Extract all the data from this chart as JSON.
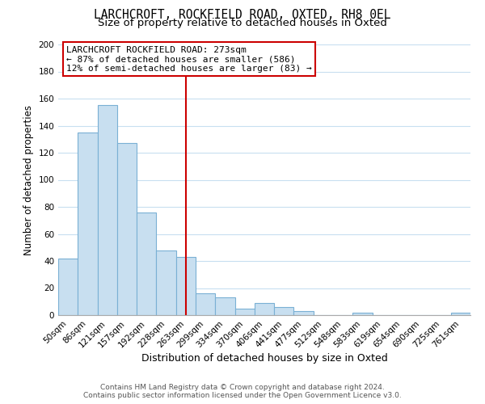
{
  "title": "LARCHCROFT, ROCKFIELD ROAD, OXTED, RH8 0EL",
  "subtitle": "Size of property relative to detached houses in Oxted",
  "xlabel": "Distribution of detached houses by size in Oxted",
  "ylabel": "Number of detached properties",
  "categories": [
    "50sqm",
    "86sqm",
    "121sqm",
    "157sqm",
    "192sqm",
    "228sqm",
    "263sqm",
    "299sqm",
    "334sqm",
    "370sqm",
    "406sqm",
    "441sqm",
    "477sqm",
    "512sqm",
    "548sqm",
    "583sqm",
    "619sqm",
    "654sqm",
    "690sqm",
    "725sqm",
    "761sqm"
  ],
  "values": [
    42,
    135,
    155,
    127,
    76,
    48,
    43,
    16,
    13,
    5,
    9,
    6,
    3,
    0,
    0,
    2,
    0,
    0,
    0,
    0,
    2
  ],
  "bar_color": "#c8dff0",
  "bar_edge_color": "#7ab0d4",
  "vline_x_index": 6,
  "vline_color": "#cc0000",
  "annotation_title": "LARCHCROFT ROCKFIELD ROAD: 273sqm",
  "annotation_line1": "← 87% of detached houses are smaller (586)",
  "annotation_line2": "12% of semi-detached houses are larger (83) →",
  "annotation_box_color": "#ffffff",
  "annotation_box_edge_color": "#cc0000",
  "ylim": [
    0,
    200
  ],
  "yticks": [
    0,
    20,
    40,
    60,
    80,
    100,
    120,
    140,
    160,
    180,
    200
  ],
  "footer_line1": "Contains HM Land Registry data © Crown copyright and database right 2024.",
  "footer_line2": "Contains public sector information licensed under the Open Government Licence v3.0.",
  "bg_color": "#ffffff",
  "grid_color": "#c8dff0",
  "title_fontsize": 10.5,
  "subtitle_fontsize": 9.5,
  "xlabel_fontsize": 9,
  "ylabel_fontsize": 8.5,
  "tick_fontsize": 7.5,
  "annotation_fontsize": 8,
  "footer_fontsize": 6.5
}
